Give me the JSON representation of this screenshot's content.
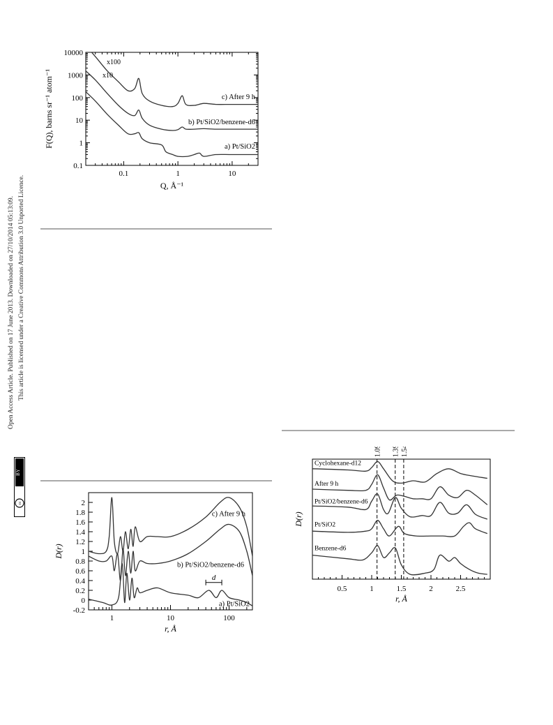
{
  "sidebar": {
    "line1": "Open Access Article. Published on 17 June 2013. Downloaded on 27/10/2014 05:13:09.",
    "line2": "This article is licensed under a Creative Commons Attribution 3.0 Unported Licence.",
    "badge_cc": "cc",
    "badge_by": "BY"
  },
  "chart_data": [
    {
      "type": "line",
      "xscale": "log",
      "yscale": "log",
      "xlim": [
        0.02,
        30
      ],
      "ylim": [
        0.1,
        10000
      ],
      "xlabel": "Q, Å⁻¹",
      "ylabel": "F(Q), barns sr⁻¹ atom⁻¹",
      "xticks": [
        "0.1",
        "1",
        "10"
      ],
      "yticks": [
        "0.1",
        "1",
        "10",
        "100",
        "1000",
        "10000"
      ],
      "annotations": [
        "x100",
        "x10"
      ],
      "series": [
        {
          "name": "c) After 9 h",
          "scale": 100,
          "x": [
            0.02,
            0.03,
            0.05,
            0.08,
            0.12,
            0.16,
            0.19,
            0.22,
            0.3,
            0.5,
            0.8,
            1.0,
            1.2,
            1.4,
            2,
            3,
            5,
            10,
            30
          ],
          "y": [
            20000,
            6500,
            1500,
            500,
            200,
            250,
            700,
            150,
            70,
            45,
            40,
            55,
            120,
            50,
            45,
            55,
            50,
            50,
            50
          ]
        },
        {
          "name": "b) Pt/SiO2/benzene-d6",
          "scale": 10,
          "x": [
            0.02,
            0.03,
            0.05,
            0.08,
            0.12,
            0.16,
            0.19,
            0.22,
            0.3,
            0.5,
            0.8,
            1.0,
            1.2,
            1.4,
            2,
            3,
            5,
            10,
            30
          ],
          "y": [
            1500,
            600,
            150,
            45,
            20,
            16,
            28,
            12,
            6,
            4,
            3.5,
            3.8,
            5,
            4,
            4,
            4.2,
            4,
            4,
            4
          ]
        },
        {
          "name": "a) Pt/SiO2",
          "scale": 1,
          "x": [
            0.02,
            0.03,
            0.05,
            0.08,
            0.12,
            0.16,
            0.19,
            0.22,
            0.3,
            0.5,
            0.6,
            0.8,
            1.0,
            1.5,
            2,
            2.5,
            3,
            5,
            10,
            30
          ],
          "y": [
            180,
            70,
            18,
            6,
            2.5,
            2.5,
            2.8,
            1.5,
            1,
            0.8,
            0.4,
            0.3,
            0.25,
            0.25,
            0.3,
            0.35,
            0.25,
            0.3,
            0.3,
            0.3
          ]
        }
      ]
    },
    {
      "type": "line",
      "xscale": "log",
      "xlim": [
        0.4,
        250
      ],
      "ylim": [
        -0.2,
        2.2
      ],
      "xlabel": "r, Å",
      "ylabel": "D(r)",
      "xticks": [
        "1",
        "10",
        "100"
      ],
      "yticks": [
        "-0.2",
        "0",
        "0.2",
        "0.4",
        "0.6",
        "0.8",
        "1",
        "1.2",
        "1.4",
        "1.6",
        "1.8",
        "2"
      ],
      "annotations": [
        "d"
      ],
      "series": [
        {
          "name": "c) After 9 h",
          "x": [
            0.4,
            0.6,
            0.8,
            0.9,
            1.0,
            1.1,
            1.25,
            1.4,
            1.55,
            1.7,
            1.9,
            2.1,
            2.3,
            2.5,
            3,
            4,
            6,
            10,
            20,
            40,
            70,
            100,
            150,
            200,
            250
          ],
          "y": [
            1.0,
            0.95,
            1.0,
            1.3,
            2.1,
            1.2,
            0.95,
            1.3,
            1.0,
            1.4,
            1.05,
            1.45,
            1.1,
            1.5,
            1.2,
            1.3,
            1.3,
            1.3,
            1.45,
            1.7,
            2.0,
            2.1,
            1.9,
            1.5,
            0.9
          ]
        },
        {
          "name": "b) Pt/SiO2/benzene-d6",
          "x": [
            0.4,
            0.6,
            0.8,
            1.0,
            1.1,
            1.25,
            1.4,
            1.55,
            1.7,
            1.9,
            2.1,
            2.3,
            2.5,
            3,
            4,
            6,
            10,
            20,
            40,
            70,
            100,
            150,
            200,
            250
          ],
          "y": [
            0.9,
            0.8,
            0.8,
            0.9,
            0.6,
            0.95,
            0.4,
            1.05,
            0.5,
            1.0,
            0.55,
            1.0,
            0.6,
            0.8,
            0.75,
            0.75,
            0.8,
            0.95,
            1.2,
            1.45,
            1.55,
            1.4,
            1.0,
            0.5
          ]
        },
        {
          "name": "a) Pt/SiO2",
          "x": [
            0.4,
            0.7,
            1.0,
            1.3,
            1.5,
            1.65,
            1.8,
            2.0,
            2.2,
            2.4,
            2.7,
            3,
            4,
            6,
            10,
            20,
            30,
            45,
            60,
            75,
            100,
            150,
            200,
            250
          ],
          "y": [
            0.02,
            -0.05,
            -0.1,
            0.05,
            0.75,
            -0.05,
            0.55,
            0.0,
            0.45,
            0.05,
            0.25,
            0.15,
            0.2,
            0.25,
            0.15,
            0.1,
            0.05,
            0.2,
            0.05,
            0.2,
            0.05,
            0.0,
            -0.05,
            -0.12
          ]
        }
      ]
    },
    {
      "type": "line",
      "xlim": [
        0,
        3
      ],
      "ylim": [
        0,
        1
      ],
      "xlabel": "r, Å",
      "ylabel": "D(r)",
      "xticks": [
        "0.5",
        "1",
        "1.5",
        "2",
        "2.5"
      ],
      "vlines": [
        {
          "x": 1.09,
          "label": "1.09"
        },
        {
          "x": 1.397,
          "label": "1.397"
        },
        {
          "x": 1.54,
          "label": "1.54"
        }
      ],
      "series": [
        {
          "name": "Cyclohexane-d12",
          "x": [
            0,
            0.6,
            0.9,
            1.0,
            1.1,
            1.2,
            1.35,
            1.5,
            1.7,
            1.9,
            2.1,
            2.3,
            2.5,
            2.7,
            2.95
          ],
          "y": [
            0.92,
            0.91,
            0.9,
            0.93,
            0.98,
            0.92,
            0.82,
            0.8,
            0.82,
            0.81,
            0.88,
            0.92,
            0.88,
            0.86,
            0.84
          ]
        },
        {
          "name": "After 9 h",
          "x": [
            0,
            0.6,
            0.9,
            1.0,
            1.1,
            1.2,
            1.3,
            1.42,
            1.55,
            1.7,
            1.85,
            2.0,
            2.15,
            2.3,
            2.45,
            2.6,
            2.75,
            2.95
          ],
          "y": [
            0.75,
            0.74,
            0.74,
            0.79,
            0.87,
            0.76,
            0.66,
            0.7,
            0.69,
            0.67,
            0.67,
            0.67,
            0.77,
            0.7,
            0.68,
            0.74,
            0.7,
            0.62
          ]
        },
        {
          "name": "Pt/SiO2/benzene-d6",
          "x": [
            0,
            0.6,
            0.9,
            1.0,
            1.1,
            1.2,
            1.28,
            1.4,
            1.5,
            1.65,
            1.85,
            2.0,
            2.15,
            2.3,
            2.45,
            2.6,
            2.75,
            2.95
          ],
          "y": [
            0.61,
            0.6,
            0.58,
            0.65,
            0.71,
            0.58,
            0.55,
            0.68,
            0.59,
            0.52,
            0.53,
            0.53,
            0.64,
            0.55,
            0.55,
            0.62,
            0.54,
            0.5
          ]
        },
        {
          "name": "Pt/SiO2",
          "x": [
            0,
            0.6,
            0.9,
            1.0,
            1.1,
            1.2,
            1.3,
            1.45,
            1.55,
            1.75,
            2.0,
            2.2,
            2.4,
            2.55,
            2.65,
            2.75,
            2.95
          ],
          "y": [
            0.4,
            0.39,
            0.4,
            0.42,
            0.49,
            0.42,
            0.36,
            0.44,
            0.38,
            0.36,
            0.36,
            0.36,
            0.36,
            0.44,
            0.47,
            0.42,
            0.38
          ]
        },
        {
          "name": "Benzene-d6",
          "x": [
            0,
            0.6,
            0.85,
            1.0,
            1.1,
            1.2,
            1.3,
            1.4,
            1.5,
            1.65,
            1.9,
            2.05,
            2.15,
            2.3,
            2.4,
            2.5,
            2.65,
            2.8,
            2.95
          ],
          "y": [
            0.2,
            0.17,
            0.16,
            0.22,
            0.28,
            0.18,
            0.22,
            0.26,
            0.12,
            0.04,
            0.05,
            0.08,
            0.2,
            0.15,
            0.18,
            0.13,
            0.08,
            0.05,
            0.04
          ]
        }
      ]
    }
  ]
}
